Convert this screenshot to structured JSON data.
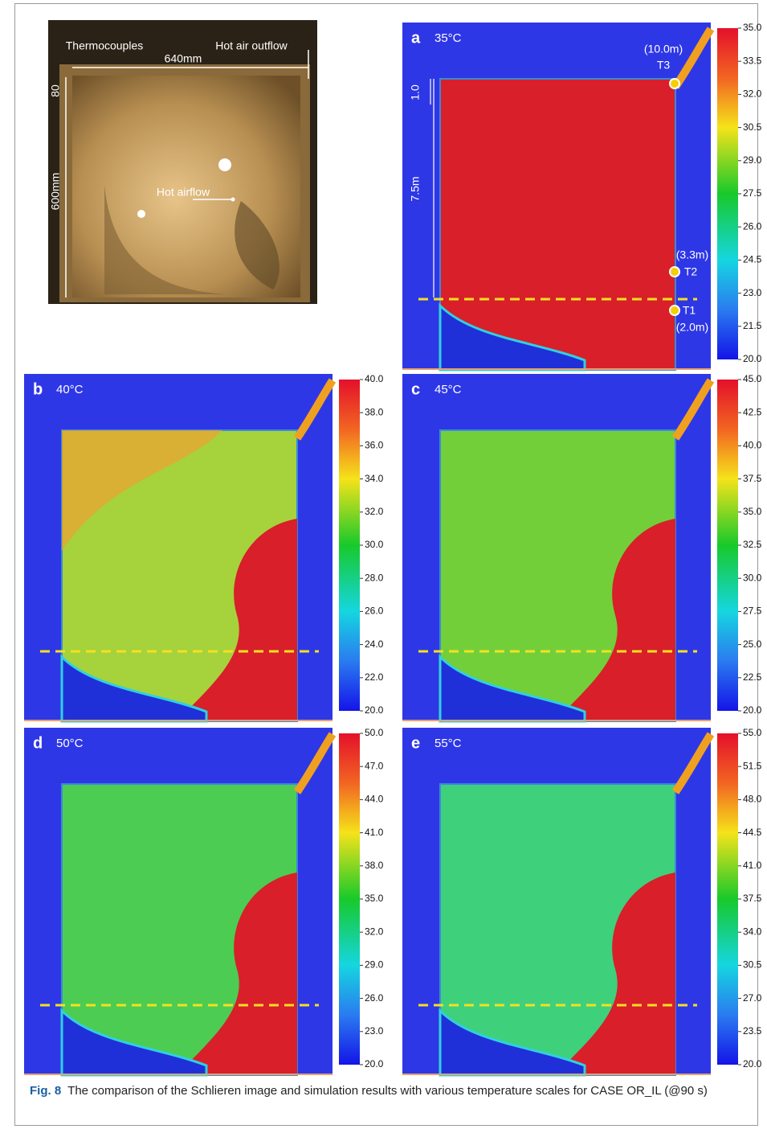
{
  "photo": {
    "labels": {
      "thermocouples": "Thermocouples",
      "width": "640mm",
      "outflow": "Hot air outflow",
      "top": "80",
      "height": "600mm",
      "airflow": "Hot airflow"
    }
  },
  "annotations": {
    "height_top": "1.0",
    "height_total": "7.5m",
    "t3_height": "(10.0m)",
    "t3": "T3",
    "t2_height": "(3.3m)",
    "t2": "T2",
    "t1": "T1",
    "t1_height": "(2.0m)"
  },
  "panels": [
    {
      "letter": "a",
      "temperature": "35°C",
      "scale": [
        "35.0",
        "33.5",
        "32.0",
        "30.5",
        "29.0",
        "27.5",
        "26.0",
        "24.5",
        "23.0",
        "21.5",
        "20.0"
      ]
    },
    {
      "letter": "b",
      "temperature": "40°C",
      "scale": [
        "40.0",
        "38.0",
        "36.0",
        "34.0",
        "32.0",
        "30.0",
        "28.0",
        "26.0",
        "24.0",
        "22.0",
        "20.0"
      ]
    },
    {
      "letter": "c",
      "temperature": "45°C",
      "scale": [
        "45.0",
        "42.5",
        "40.0",
        "37.5",
        "35.0",
        "32.5",
        "30.0",
        "27.5",
        "25.0",
        "22.5",
        "20.0"
      ]
    },
    {
      "letter": "d",
      "temperature": "50°C",
      "scale": [
        "50.0",
        "47.0",
        "44.0",
        "41.0",
        "38.0",
        "35.0",
        "32.0",
        "29.0",
        "26.0",
        "23.0",
        "20.0"
      ]
    },
    {
      "letter": "e",
      "temperature": "55°C",
      "scale": [
        "55.0",
        "51.5",
        "48.0",
        "44.5",
        "41.0",
        "37.5",
        "34.0",
        "30.5",
        "27.0",
        "23.5",
        "20.0"
      ]
    }
  ],
  "caption": {
    "label": "Fig. 8",
    "text": "The comparison of the Schlieren image and simulation results with various temperature scales for CASE OR_IL (@90 s)"
  }
}
